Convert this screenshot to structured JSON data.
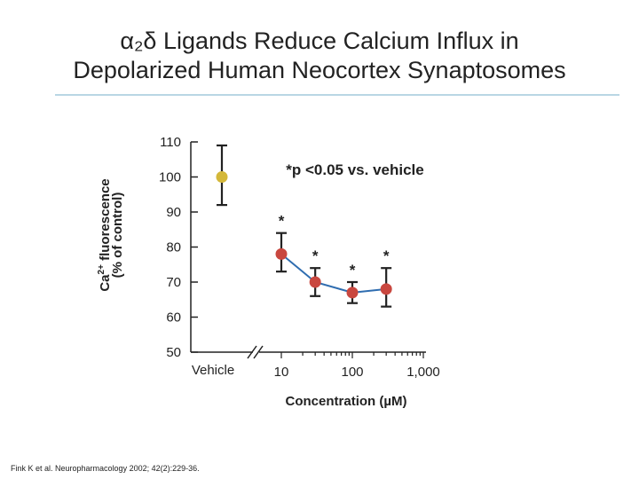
{
  "title_line1": "α₂δ Ligands Reduce Calcium Influx in",
  "title_line2": "Depolarized Human Neocortex Synaptosomes",
  "citation": "Fink K et al. Neuropharmacology 2002; 42(2):229-36.",
  "colors": {
    "vehicle": "#d4b83a",
    "drug": "#c9473f",
    "line": "#2f6db0",
    "axis": "#222222",
    "rule": "#b9d6e4"
  },
  "chart_data": {
    "type": "line",
    "ylabel_line1": "Ca2+ fluorescence",
    "ylabel_line2": "(% of control)",
    "xlabel": "Concentration (µM)",
    "ylim": [
      50,
      110
    ],
    "y_ticks": [
      110,
      100,
      90,
      80,
      70,
      60,
      50
    ],
    "x_scale": "log",
    "x_tick_labels": [
      "Vehicle",
      "10",
      "100",
      "1,000"
    ],
    "significance_note": "*p <0.05 vs. vehicle",
    "vehicle": {
      "label": "Vehicle",
      "value": 100,
      "err_low": 92,
      "err_high": 109
    },
    "series": [
      {
        "x": [
          10,
          30,
          100,
          300
        ],
        "y": [
          78,
          70,
          67,
          68
        ],
        "err_low": [
          73,
          66,
          64,
          63
        ],
        "err_high": [
          84,
          74,
          70,
          74
        ],
        "significant": [
          true,
          true,
          true,
          true
        ]
      }
    ]
  }
}
